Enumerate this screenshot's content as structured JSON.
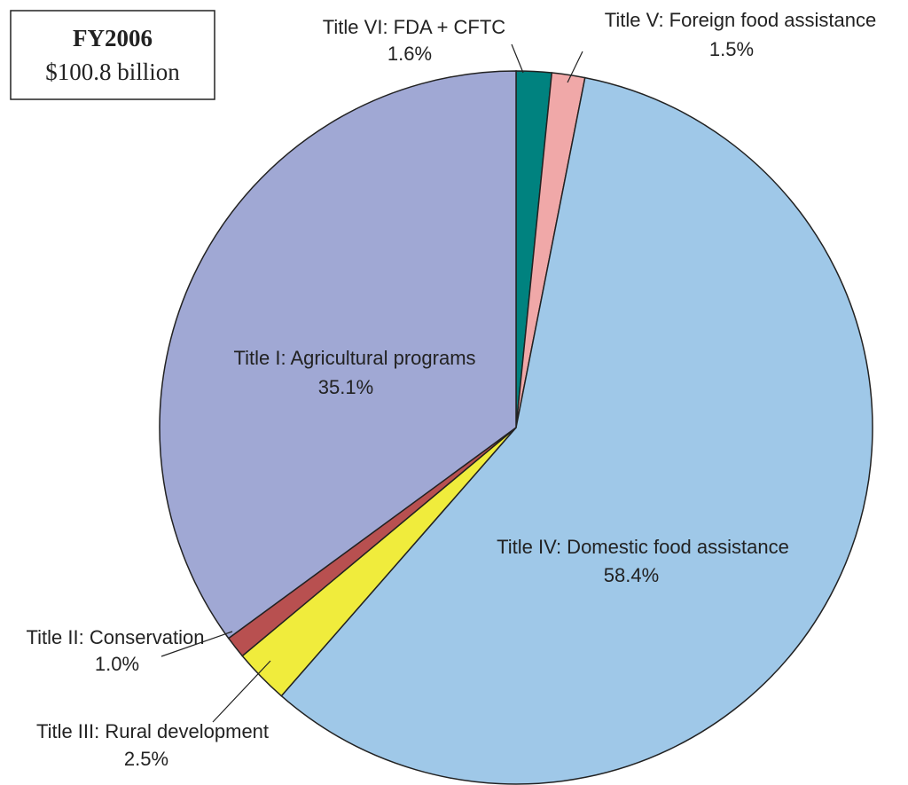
{
  "chart_data": {
    "type": "pie",
    "title": "FY2006",
    "subtitle": "$100.8 billion",
    "categories": [
      "Title VI: FDA + CFTC",
      "Title V: Foreign food assistance",
      "Title IV: Domestic food assistance",
      "Title III: Rural development",
      "Title II: Conservation",
      "Title I: Agricultural programs"
    ],
    "values": [
      1.6,
      1.5,
      58.4,
      2.5,
      1.0,
      35.1
    ],
    "value_labels": [
      "1.6%",
      "1.5%",
      "58.4%",
      "2.5%",
      "1.0%",
      "35.1%"
    ],
    "colors": [
      "#00827f",
      "#f0a8a8",
      "#9fc8e8",
      "#f0ec3c",
      "#b85050",
      "#a0a8d4"
    ]
  }
}
